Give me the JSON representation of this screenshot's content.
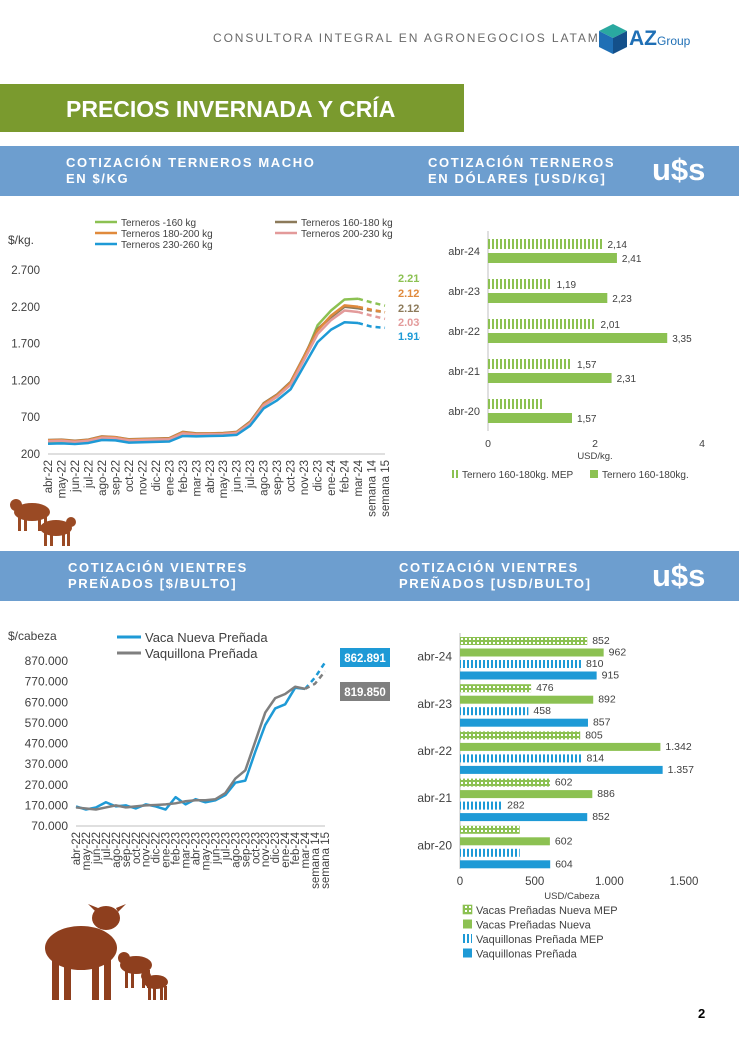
{
  "header": {
    "tagline": "CONSULTORA INTEGRAL EN AGRONEGOCIOS LATAM",
    "logo_text": "AZ",
    "logo_sub": "Group"
  },
  "page_title": "PRECIOS INVERNADA Y CRÍA",
  "sections": {
    "terneros_ars": "COTIZACIÓN TERNEROS MACHO EN  $/KG",
    "terneros_usd": "COTIZACIÓN TERNEROS EN DÓLARES [USD/KG]",
    "vientres_ars": "COTIZACIÓN VIENTRES PREÑADOS [$/BULTO]",
    "vientres_usd": "COTIZACIÓN VIENTRES PREÑADOS [USD/BULTO]",
    "usd_badge": "u$s"
  },
  "page_number": "2",
  "chart_data": [
    {
      "id": "terneros_ars",
      "type": "line",
      "ylabel": "$/kg.",
      "ylim": [
        200,
        2700
      ],
      "yticks": [
        "200",
        "700",
        "1.200",
        "1.700",
        "2.200",
        "2.700"
      ],
      "ytick_values": [
        200,
        700,
        1200,
        1700,
        2200,
        2700
      ],
      "categories": [
        "abr-22",
        "may-22",
        "jun-22",
        "jul-22",
        "ago-22",
        "sep-22",
        "oct-22",
        "nov-22",
        "dic-22",
        "ene-23",
        "feb-23",
        "mar-23",
        "abr-23",
        "may-23",
        "jun-23",
        "jul-23",
        "ago-23",
        "sep-23",
        "oct-23",
        "nov-23",
        "dic-23",
        "ene-24",
        "feb-24",
        "mar-24",
        "semana 14",
        "semana 15"
      ],
      "legend_position": "top",
      "series": [
        {
          "name": "Terneros -160 kg",
          "color": "#8cc152",
          "end_label": "2.215",
          "values": [
            370,
            372,
            360,
            380,
            430,
            425,
            385,
            390,
            395,
            400,
            490,
            470,
            470,
            475,
            490,
            620,
            860,
            980,
            1150,
            1500,
            1950,
            2150,
            2300,
            2310,
            2260,
            2215
          ]
        },
        {
          "name": "Terneros 160-180 kg",
          "color": "#8c7a5a",
          "end_label": "2.126",
          "values": [
            390,
            395,
            380,
            395,
            440,
            430,
            400,
            405,
            410,
            415,
            500,
            480,
            480,
            485,
            500,
            640,
            890,
            1010,
            1180,
            1530,
            1900,
            2060,
            2200,
            2180,
            2150,
            2126
          ]
        },
        {
          "name": "Terneros 180-200 kg",
          "color": "#e08a3c",
          "end_label": "2.127",
          "values": [
            385,
            390,
            375,
            390,
            435,
            428,
            395,
            400,
            405,
            410,
            495,
            475,
            478,
            480,
            495,
            630,
            880,
            1000,
            1170,
            1520,
            1880,
            2080,
            2220,
            2200,
            2160,
            2127
          ]
        },
        {
          "name": "Terneros 200-230 kg",
          "color": "#e39a9a",
          "end_label": "2.036",
          "values": [
            375,
            380,
            365,
            380,
            420,
            415,
            385,
            390,
            395,
            400,
            480,
            465,
            468,
            470,
            485,
            615,
            860,
            980,
            1140,
            1480,
            1830,
            2020,
            2150,
            2130,
            2080,
            2036
          ]
        },
        {
          "name": "Terneros 230-260 kg",
          "color": "#1e9ad6",
          "end_label": "1.914",
          "values": [
            340,
            345,
            335,
            350,
            390,
            385,
            355,
            360,
            365,
            370,
            445,
            440,
            445,
            448,
            460,
            585,
            820,
            930,
            1080,
            1400,
            1720,
            1890,
            1990,
            1980,
            1930,
            1914
          ]
        }
      ]
    },
    {
      "id": "terneros_usd",
      "type": "bar",
      "orientation": "horizontal",
      "categories": [
        "abr-24",
        "abr-23",
        "abr-22",
        "abr-21",
        "abr-20"
      ],
      "xlabel": "USD/kg.",
      "xlim": [
        0,
        4
      ],
      "xticks": [
        "0",
        "2",
        "4"
      ],
      "series": [
        {
          "name": "Ternero 160-180kg. MEP",
          "color": "#8cc152",
          "pattern": "vstripe",
          "values": [
            2.14,
            1.19,
            2.01,
            1.57,
            1.04
          ],
          "labels": [
            "2,14",
            "1,19",
            "2,01",
            "1,57",
            ""
          ]
        },
        {
          "name": "Ternero 160-180kg.",
          "color": "#8cc152",
          "pattern": "solid",
          "values": [
            2.41,
            2.23,
            3.35,
            2.31,
            1.57
          ],
          "labels": [
            "2,41",
            "2,23",
            "3,35",
            "2,31",
            "1,57"
          ]
        }
      ]
    },
    {
      "id": "vientres_ars",
      "type": "line",
      "ylabel": "$/cabeza",
      "ylim": [
        70000,
        870000
      ],
      "yticks": [
        "70.000",
        "170.000",
        "270.000",
        "370.000",
        "470.000",
        "570.000",
        "670.000",
        "770.000",
        "870.000"
      ],
      "ytick_values": [
        70000,
        170000,
        270000,
        370000,
        470000,
        570000,
        670000,
        770000,
        870000
      ],
      "categories": [
        "abr-22",
        "may-22",
        "jun-22",
        "jul-22",
        "ago-22",
        "sep-22",
        "oct-22",
        "nov-22",
        "dic-22",
        "ene-23",
        "feb-23",
        "mar-23",
        "abr-23",
        "may-23",
        "jun-23",
        "jul-23",
        "ago-23",
        "sep-23",
        "oct-23",
        "nov-23",
        "dic-23",
        "ene-24",
        "feb-24",
        "mar-24",
        "semana 14",
        "semana 15"
      ],
      "series": [
        {
          "name": "Vaca Nueva Preñada",
          "color": "#1e9ad6",
          "end_label": "862.891",
          "values": [
            165000,
            150000,
            160000,
            185000,
            165000,
            170000,
            155000,
            175000,
            165000,
            150000,
            210000,
            175000,
            200000,
            185000,
            195000,
            220000,
            280000,
            290000,
            430000,
            560000,
            640000,
            660000,
            740000,
            735000,
            790000,
            862891
          ]
        },
        {
          "name": "Vaquillona Preñada",
          "color": "#7f7f7f",
          "end_label": "819.850",
          "values": [
            160000,
            155000,
            150000,
            160000,
            170000,
            160000,
            165000,
            170000,
            172000,
            175000,
            180000,
            190000,
            195000,
            195000,
            200000,
            230000,
            300000,
            340000,
            480000,
            620000,
            690000,
            710000,
            745000,
            735000,
            760000,
            819850
          ]
        }
      ]
    },
    {
      "id": "vientres_usd",
      "type": "bar",
      "orientation": "horizontal",
      "categories": [
        "abr-24",
        "abr-23",
        "abr-22",
        "abr-21",
        "abr-20"
      ],
      "xlabel": "USD/Cabeza",
      "xlim": [
        0,
        1500
      ],
      "xticks": [
        "0",
        "500",
        "1.000",
        "1.500"
      ],
      "series": [
        {
          "name": "Vacas Preñadas Nueva MEP",
          "color": "#8cc152",
          "pattern": "hstripe",
          "values": [
            852,
            476,
            805,
            602,
            400
          ],
          "labels": [
            "852",
            "476",
            "805",
            "602",
            ""
          ]
        },
        {
          "name": "Vacas Preñadas Nueva",
          "color": "#8cc152",
          "pattern": "solid",
          "values": [
            962,
            892,
            1342,
            886,
            602
          ],
          "labels": [
            "962",
            "892",
            "1.342",
            "886",
            "602"
          ]
        },
        {
          "name": "Vaquillonas Preñada MEP",
          "color": "#1e9ad6",
          "pattern": "vstripe",
          "values": [
            810,
            458,
            814,
            282,
            400
          ],
          "labels": [
            "810",
            "458",
            "814",
            "282",
            ""
          ]
        },
        {
          "name": "Vaquillonas Preñada",
          "color": "#1e9ad6",
          "pattern": "solid",
          "values": [
            915,
            857,
            1357,
            852,
            604
          ],
          "labels": [
            "915",
            "857",
            "1.357",
            "852",
            "604"
          ]
        }
      ]
    }
  ]
}
